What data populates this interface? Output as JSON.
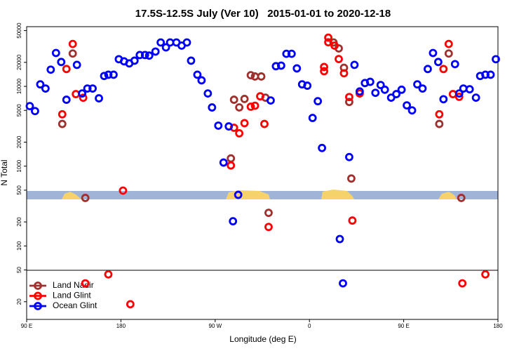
{
  "chart_data": {
    "type": "scatter",
    "title": "17.5S-12.5S July (Ver 10)   2015-01-01 to 2020-12-18",
    "x_label": "Longitude (deg E)",
    "y_label": "N Total",
    "log_y": true,
    "legend": "bottom-left",
    "xlim": [
      90,
      540
    ],
    "ylim": [
      12,
      56000
    ],
    "xticks": [
      {
        "value": 90,
        "label": "90 E"
      },
      180,
      {
        "value": 270,
        "label": "90 W"
      },
      {
        "value": 360,
        "label": "0"
      },
      {
        "value": 450,
        "label": "90 E"
      },
      {
        "value": 540,
        "label": "180"
      }
    ],
    "yticks": [
      20,
      50,
      100,
      200,
      500,
      1000,
      2000,
      5000,
      10000,
      20000,
      50000
    ],
    "series": [
      {
        "name": "Land Nadir",
        "color": "#a0302e",
        "x": [
          124,
          134,
          146,
          288,
          293,
          298,
          304,
          308,
          314,
          318,
          321,
          285,
          383,
          388,
          393,
          398,
          400,
          484,
          493,
          505
        ],
        "values": [
          3380,
          25800,
          400,
          6800,
          5450,
          6960,
          13800,
          13300,
          13300,
          7220,
          260,
          1250,
          35500,
          29900,
          17100,
          6380,
          700,
          3380,
          25800,
          400
        ]
      },
      {
        "name": "Land Glint",
        "color": "#ff0000",
        "x": [
          124,
          128,
          134,
          137,
          144,
          146,
          168,
          182,
          189,
          285,
          288,
          293,
          298,
          304,
          308,
          313,
          317,
          321,
          374,
          374,
          378,
          378,
          384,
          388,
          393,
          398,
          401,
          408,
          484,
          488,
          493,
          497,
          503,
          506,
          528
        ],
        "values": [
          4470,
          16500,
          34000,
          8000,
          7200,
          34,
          44,
          494,
          18.6,
          1020,
          3030,
          2580,
          3460,
          5560,
          5720,
          7510,
          3380,
          173,
          17500,
          15500,
          40800,
          35700,
          32400,
          22000,
          14600,
          7350,
          208,
          8150,
          4470,
          16500,
          34000,
          8000,
          7400,
          34,
          44
        ]
      },
      {
        "name": "Ocean Glint",
        "color": "#0000ff",
        "x": [
          93,
          98,
          103,
          108,
          113,
          118,
          123,
          128,
          138,
          143,
          148,
          153,
          159,
          164,
          168,
          173,
          178,
          183,
          188,
          193,
          198,
          203,
          207,
          213,
          218,
          223,
          227,
          233,
          238,
          243,
          247,
          253,
          257,
          263,
          267,
          273,
          283,
          278,
          287,
          292,
          323,
          328,
          333,
          338,
          343,
          348,
          353,
          358,
          363,
          368,
          372,
          389,
          392,
          398,
          403,
          408,
          413,
          418,
          423,
          428,
          432,
          438,
          443,
          448,
          453,
          458,
          463,
          468,
          473,
          478,
          483,
          488,
          499,
          503,
          507,
          513,
          519,
          523,
          528,
          533,
          538
        ],
        "values": [
          5660,
          4900,
          10600,
          9400,
          16200,
          26200,
          20200,
          6800,
          18600,
          8150,
          9400,
          9400,
          7080,
          13500,
          14000,
          14000,
          21900,
          20600,
          19400,
          21000,
          24700,
          24700,
          24300,
          27300,
          35500,
          30800,
          35500,
          35500,
          32400,
          35500,
          21000,
          14000,
          11900,
          8150,
          5440,
          3220,
          3150,
          1110,
          204,
          437,
          6660,
          17900,
          18200,
          25600,
          25600,
          16800,
          10600,
          10200,
          4020,
          6520,
          1690,
          122,
          34,
          1300,
          18600,
          8640,
          11000,
          11400,
          8300,
          10400,
          9080,
          7220,
          8000,
          9080,
          5780,
          5000,
          10600,
          9400,
          16500,
          26200,
          20200,
          6900,
          19000,
          8150,
          9400,
          9200,
          7220,
          13500,
          14000,
          14000,
          21900
        ]
      }
    ]
  }
}
